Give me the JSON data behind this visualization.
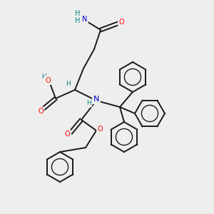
{
  "bg_color": "#eeeeee",
  "atom_colors": {
    "C": "#1a1a1a",
    "O": "#ff0000",
    "N": "#0000cc",
    "H": "#008080"
  },
  "bond_color": "#1a1a1a",
  "bond_width": 1.4,
  "figsize": [
    3.0,
    3.0
  ],
  "dpi": 100,
  "xlim": [
    0,
    10
  ],
  "ylim": [
    0,
    10
  ]
}
